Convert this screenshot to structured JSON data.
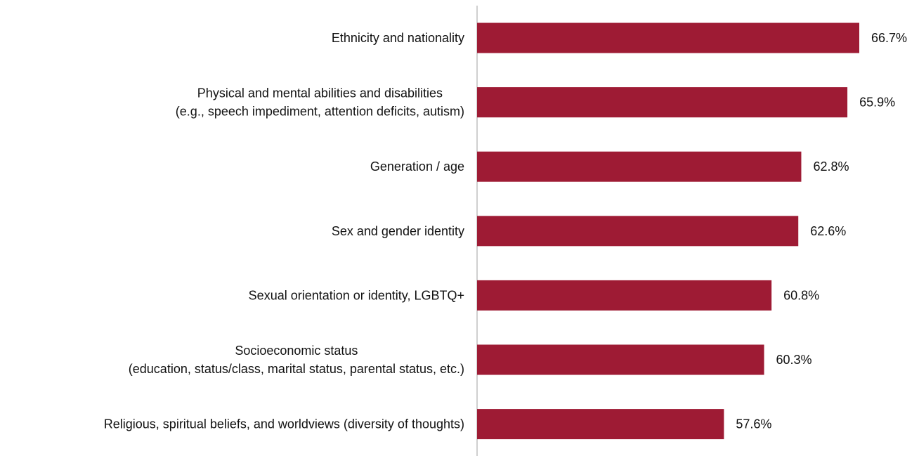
{
  "chart_data": {
    "type": "bar",
    "orientation": "horizontal",
    "categories": [
      [
        "Ethnicity and nationality"
      ],
      [
        "Physical and mental abilities and disabilities",
        "(e.g., speech impediment, attention deficits, autism)"
      ],
      [
        "Generation / age"
      ],
      [
        "Sex and gender identity"
      ],
      [
        "Sexual orientation or identity, LGBTQ+"
      ],
      [
        "Socioeconomic status",
        "(education, status/class, marital status, parental status, etc.)"
      ],
      [
        "Religious, spiritual beliefs, and worldviews (diversity of thoughts)"
      ]
    ],
    "values": [
      66.7,
      65.9,
      62.8,
      62.6,
      60.8,
      60.3,
      57.6
    ],
    "value_labels": [
      "66.7%",
      "65.9%",
      "62.8%",
      "62.6%",
      "60.8%",
      "60.3%",
      "57.6%"
    ],
    "bar_color": "#9E1B34",
    "axis_color": "#BFBFBF",
    "xlim": [
      41,
      70
    ],
    "grid": false,
    "legend": "none"
  }
}
